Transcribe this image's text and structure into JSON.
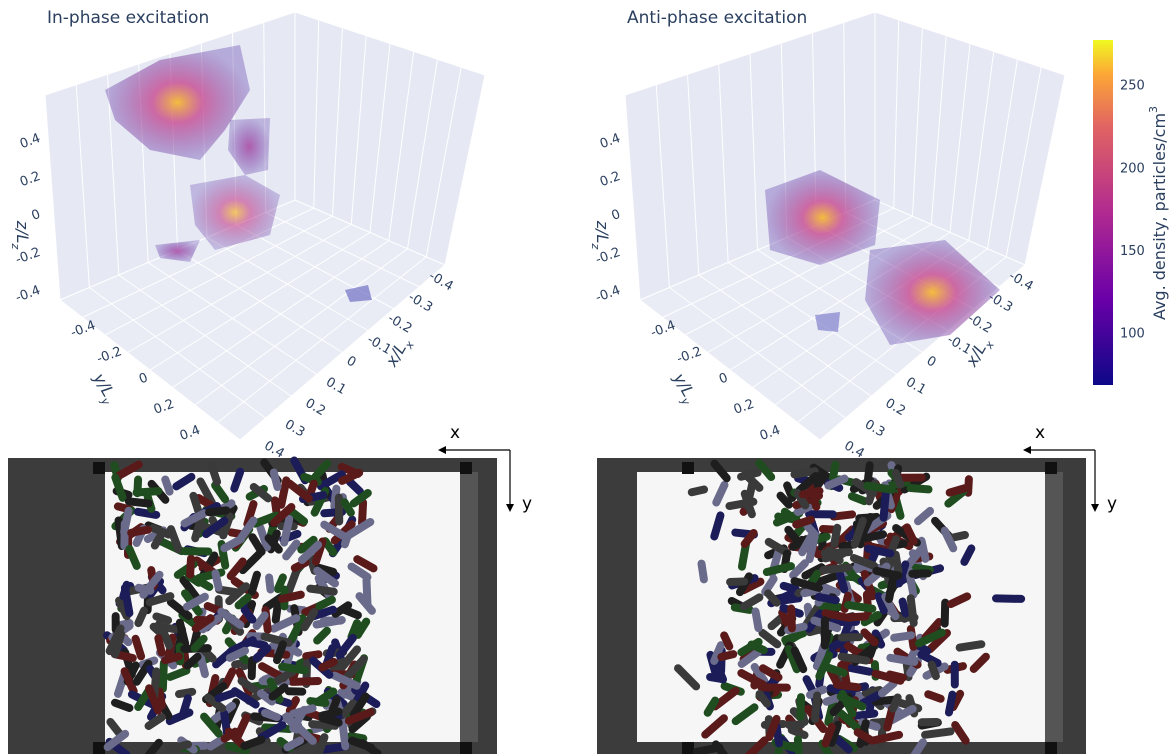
{
  "panels": [
    {
      "title": "In-phase excitation"
    },
    {
      "title": "Anti-phase excitation"
    }
  ],
  "axes": {
    "z_ticks": [
      0.4,
      0.2,
      0,
      -0.2,
      -0.4
    ],
    "y_ticks": [
      -0.4,
      -0.2,
      0,
      0.2,
      0.4
    ],
    "x_ticks": [
      -0.4,
      -0.3,
      -0.2,
      -0.1,
      0,
      0.1,
      0.2,
      0.3,
      0.4
    ],
    "z_label": {
      "text": "z/L",
      "sub": "z"
    },
    "y_label": {
      "text": "y/L",
      "sub": "y"
    },
    "x_label": {
      "text": "x/L",
      "sub": "x"
    }
  },
  "colorbar": {
    "title": {
      "text": "Avg. density, particles/cm",
      "sup": "3"
    },
    "range": [
      69,
      278
    ],
    "ticks": [
      100,
      150,
      200,
      250
    ]
  },
  "snapshots": {
    "x_arrow": "x",
    "y_arrow": "y"
  }
}
